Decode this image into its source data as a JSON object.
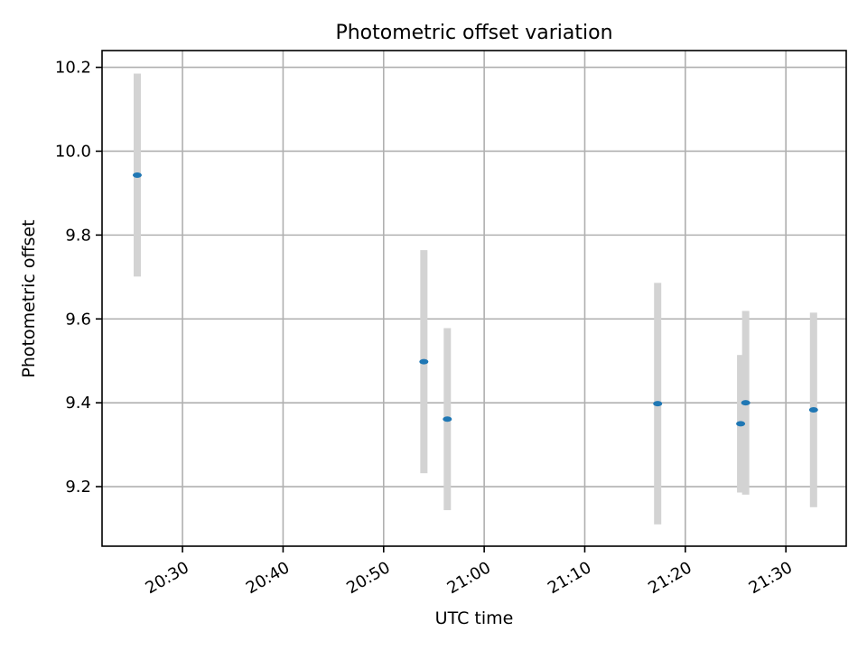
{
  "chart_data": {
    "type": "scatter",
    "title": "Photometric offset variation",
    "xlabel": "UTC time",
    "ylabel": "Photometric offset",
    "grid": true,
    "x_ticks": [
      "20:30",
      "20:40",
      "20:50",
      "21:00",
      "21:10",
      "21:20",
      "21:30"
    ],
    "y_ticks": [
      "9.2",
      "9.4",
      "9.6",
      "9.8",
      "10.0",
      "10.2"
    ],
    "xlim": [
      "20:22",
      "21:36"
    ],
    "ylim": [
      9.058,
      10.24
    ],
    "series": [
      {
        "marker": "ellipse",
        "color": "#1f77b4",
        "error_color": "#d3d3d3",
        "points": [
          {
            "x": "20:25:30",
            "y": 9.943,
            "err": 0.242
          },
          {
            "x": "20:54:00",
            "y": 9.498,
            "err": 0.266
          },
          {
            "x": "20:56:20",
            "y": 9.361,
            "err": 0.217
          },
          {
            "x": "21:17:15",
            "y": 9.398,
            "err": 0.288
          },
          {
            "x": "21:25:30",
            "y": 9.35,
            "err": 0.164
          },
          {
            "x": "21:26:00",
            "y": 9.4,
            "err": 0.219
          },
          {
            "x": "21:32:45",
            "y": 9.383,
            "err": 0.232
          }
        ]
      }
    ]
  }
}
